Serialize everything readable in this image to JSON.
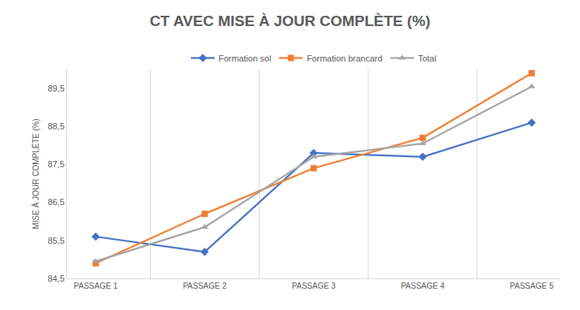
{
  "chart_data": {
    "type": "line",
    "title": "CT AVEC MISE À JOUR COMPLÈTE (%)",
    "y_label": "MISE À JOUR COMPLÈTE (%)",
    "categories": [
      "PASSAGE 1",
      "PASSAGE 2",
      "PASSAGE 3",
      "PASSAGE 4",
      "PASSAGE 5"
    ],
    "series": [
      {
        "name": "Formation sol",
        "color": "#4472c4",
        "marker": "diamond",
        "values": [
          85.6,
          85.2,
          87.8,
          87.7,
          88.6
        ]
      },
      {
        "name": "Formation brancard",
        "color": "#ed7d31",
        "marker": "square",
        "values": [
          84.9,
          86.2,
          87.4,
          88.2,
          89.9
        ]
      },
      {
        "name": "Total",
        "color": "#a5a5a5",
        "marker": "triangle-up",
        "values": [
          84.95,
          85.85,
          87.7,
          88.05,
          89.55
        ]
      }
    ],
    "ylim": [
      84.5,
      90
    ],
    "yticks": [
      {
        "value": 84.5,
        "label": "84,5"
      },
      {
        "value": 85.5,
        "label": "85,5"
      },
      {
        "value": 86.5,
        "label": "86,5"
      },
      {
        "value": 87.5,
        "label": "87,5"
      },
      {
        "value": 88.5,
        "label": "88,5"
      },
      {
        "value": 89.5,
        "label": "89,5"
      }
    ],
    "grid": true,
    "legend": "top"
  }
}
